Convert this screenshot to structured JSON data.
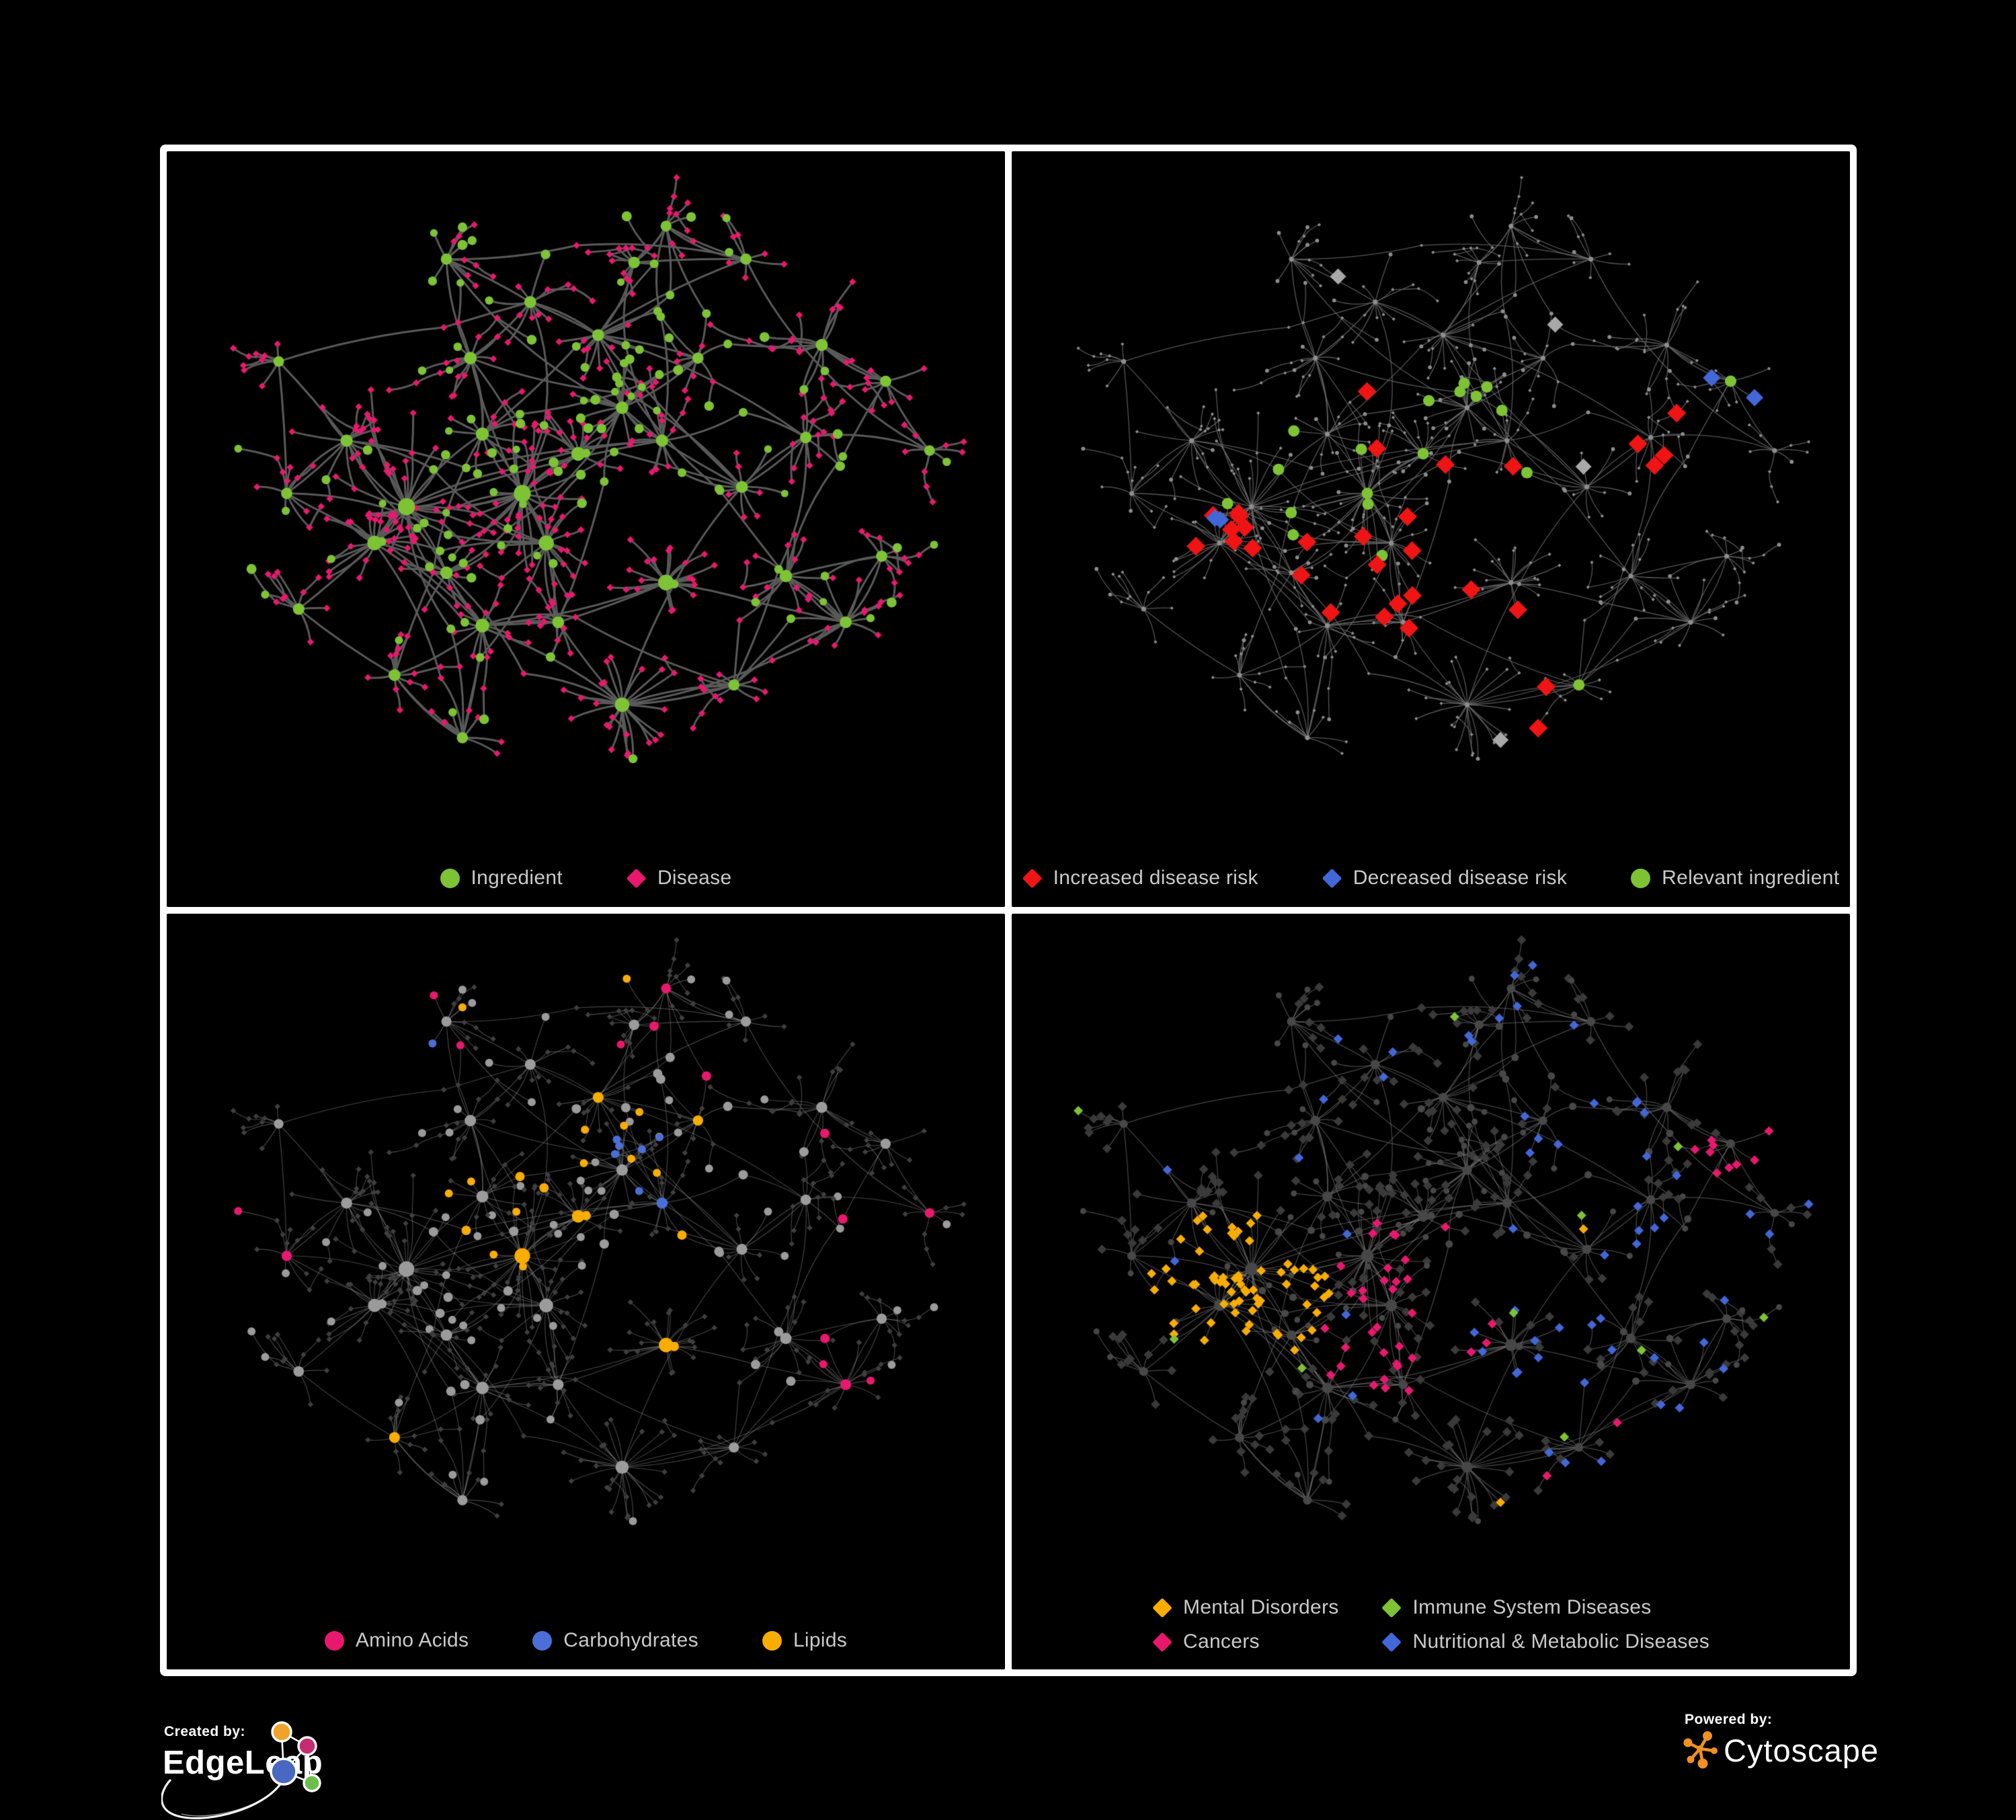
{
  "page": {
    "background": "#000000",
    "frame_color": "#ffffff"
  },
  "panels": [
    {
      "id": "ingredient-disease-network",
      "legend_layout": "row",
      "legend": [
        {
          "label": "Ingredient",
          "shape": "circle",
          "color": "#7dc334"
        },
        {
          "label": "Disease",
          "shape": "diamond",
          "color": "#e9186f"
        }
      ]
    },
    {
      "id": "disease-risk-network",
      "legend_layout": "row",
      "legend": [
        {
          "label": "Increased disease risk",
          "shape": "diamond",
          "color": "#f01414"
        },
        {
          "label": "Decreased disease risk",
          "shape": "diamond",
          "color": "#4267d8"
        },
        {
          "label": "Relevant ingredient",
          "shape": "circle",
          "color": "#7dc334"
        }
      ]
    },
    {
      "id": "macronutrient-network",
      "legend_layout": "row",
      "legend": [
        {
          "label": "Amino Acids",
          "shape": "circle",
          "color": "#e9186f"
        },
        {
          "label": "Carbohydrates",
          "shape": "circle",
          "color": "#4b6fd8"
        },
        {
          "label": "Lipids",
          "shape": "circle",
          "color": "#f9ad00"
        }
      ]
    },
    {
      "id": "disease-category-network",
      "legend_layout": "grid",
      "legend": [
        {
          "label": "Mental Disorders",
          "shape": "diamond",
          "color": "#f9ad00"
        },
        {
          "label": "Immune System Diseases",
          "shape": "diamond",
          "color": "#7dc334"
        },
        {
          "label": "Cancers",
          "shape": "diamond",
          "color": "#e9186f"
        },
        {
          "label": "Nutritional & Metabolic Diseases",
          "shape": "diamond",
          "color": "#4267d8"
        }
      ]
    }
  ],
  "network_style": {
    "panel1": {
      "edge": "#5a5a5a",
      "edge_width": 3.0,
      "ingredient": "#7dc334",
      "disease": "#e9186f"
    },
    "panel2": {
      "edge": "rgba(110,110,110,0.78)",
      "edge_width": 1.3,
      "base": "#8d8d8d",
      "increased": "#f01414",
      "decreased": "#4267d8",
      "unchanged": "#a8a8a8",
      "relevant": "#7dc334"
    },
    "panel3": {
      "edge": "rgba(154,154,154,0.45)",
      "edge_width": 1.15,
      "base": "#9b9b9b",
      "disease": "#3f3f3f",
      "amino": "#e9186f",
      "carb": "#4b6fd8",
      "lipid": "#f9ad00"
    },
    "panel4": {
      "edge": "rgba(138,138,138,0.5)",
      "edge_width": 1.25,
      "ingredient": "#474747",
      "base_disease": "#3a3a3a",
      "mental": "#f9ad00",
      "immune": "#7dc334",
      "cancer": "#e9186f",
      "metabolic": "#4267d8"
    }
  },
  "footer": {
    "created_by_label": "Created by:",
    "created_by_name": "EdgeLeap",
    "powered_by_label": "Powered by:",
    "powered_by_name": "Cytoscape",
    "edgeleap_logo_colors": {
      "orange": "#f0a32a",
      "pink": "#c52d71",
      "blue": "#4968c2",
      "green": "#6dbf4b"
    },
    "cytoscape_color": "#f19021"
  }
}
